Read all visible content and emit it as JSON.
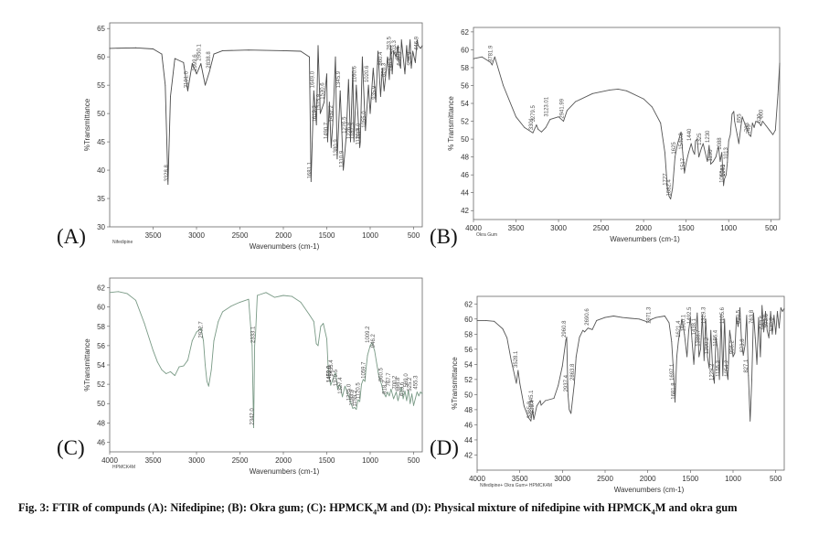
{
  "figure": {
    "caption_prefix": "Fig. 3: FTIR of compunds (A): Nifedipine; (B): Okra gum; (C): HPMCK",
    "caption_sub1": "4",
    "caption_mid": "M and (D): Physical mixture of nifedipine with HPMCK",
    "caption_sub2": "4",
    "caption_suffix": "M and okra gum"
  },
  "chart_data": [
    {
      "panel": "(A)",
      "type": "line",
      "sample_name": "Nifedipine",
      "xlabel": "Wavenumbers (cm-1)",
      "ylabel": "%Transmittance",
      "xlim": [
        4000,
        400
      ],
      "ylim": [
        30,
        66
      ],
      "xticks": [
        3500,
        3000,
        2500,
        2000,
        1500,
        1000,
        500
      ],
      "yticks": [
        30,
        35,
        40,
        45,
        50,
        55,
        60,
        65
      ],
      "line_color": "#4a4a4a",
      "grid": false,
      "x": [
        4000,
        3700,
        3500,
        3400,
        3360,
        3328,
        3300,
        3250,
        3150,
        3101,
        3050,
        2999,
        2950,
        2900,
        2850,
        2800,
        2700,
        2400,
        2000,
        1800,
        1700,
        1681,
        1650,
        1619,
        1600,
        1575,
        1530,
        1500,
        1490,
        1470,
        1450,
        1432,
        1400,
        1380,
        1345,
        1310,
        1276,
        1250,
        1226,
        1200,
        1187,
        1160,
        1120,
        1114,
        1090,
        1055,
        1020,
        1000,
        965,
        935,
        910,
        880,
        860,
        840,
        826,
        800,
        780,
        763,
        746,
        730,
        703,
        680,
        665,
        650,
        640,
        620,
        600,
        580,
        565,
        540,
        526,
        510,
        480,
        460,
        446,
        420,
        400
      ],
      "y": [
        61.5,
        61.6,
        61.4,
        60.5,
        55,
        37.5,
        53,
        59.7,
        59,
        54,
        58.8,
        57,
        58.8,
        55,
        57.5,
        60.5,
        61.1,
        61.2,
        61.1,
        61,
        60,
        38,
        54,
        48,
        62,
        50,
        52,
        57,
        45,
        52,
        44,
        48,
        60,
        42,
        54,
        40,
        46,
        56,
        45,
        58,
        45,
        55,
        44,
        45,
        60,
        47,
        55,
        50,
        58,
        52,
        61,
        53,
        58,
        54,
        56,
        60,
        56,
        62,
        57,
        61,
        60,
        62,
        59,
        58,
        63,
        60,
        57,
        62,
        59,
        63,
        58,
        61,
        59,
        63,
        62,
        61.5,
        62
      ],
      "annotations": [
        "3328.8",
        "3101.0",
        "2999.6",
        "2950.1",
        "2838.8",
        "1681.1",
        "1649.0",
        "1619.2",
        "1575.8",
        "1530.6",
        "1490.7",
        "1432.2",
        "1380.9",
        "1345.9",
        "1310.9",
        "1276.5",
        "1226.8",
        "1187.3",
        "1160.6",
        "1120.5",
        "1114.0",
        "1055.0",
        "1020.6",
        "935.9",
        "860.4",
        "826.3",
        "763.5",
        "746.5",
        "703.3",
        "665.6",
        "646.3",
        "526.9",
        "446.9"
      ]
    },
    {
      "panel": "(B)",
      "type": "line",
      "sample_name": "Okra Gum",
      "xlabel": "Wavenumbers (cm-1)",
      "ylabel": "% Transmittance",
      "xlim": [
        4000,
        400
      ],
      "ylim": [
        41,
        62.5
      ],
      "xticks": [
        4000,
        3500,
        3000,
        2500,
        2000,
        1500,
        1000,
        500
      ],
      "yticks": [
        42,
        44,
        46,
        48,
        50,
        52,
        54,
        56,
        58,
        60,
        62
      ],
      "line_color": "#555555",
      "grid": false,
      "x": [
        4000,
        3900,
        3800,
        3781,
        3750,
        3650,
        3500,
        3400,
        3301,
        3260,
        3240,
        3200,
        3150,
        3100,
        3000,
        2941,
        2900,
        2800,
        2600,
        2400,
        2300,
        2200,
        2000,
        1900,
        1800,
        1750,
        1720,
        1700,
        1682,
        1660,
        1630,
        1600,
        1560,
        1540,
        1520,
        1500,
        1470,
        1440,
        1420,
        1400,
        1390,
        1370,
        1350,
        1320,
        1300,
        1280,
        1250,
        1230,
        1210,
        1180,
        1150,
        1120,
        1100,
        1080,
        1060,
        1050,
        1030,
        1015,
        1000,
        980,
        960,
        940,
        930,
        900,
        880,
        855,
        840,
        820,
        780,
        760,
        740,
        720,
        700,
        680,
        640,
        620,
        600,
        560,
        520,
        480,
        450,
        420,
        400
      ],
      "y": [
        59,
        59.2,
        58.6,
        58.3,
        59.2,
        56,
        52.5,
        51.3,
        50.7,
        51.6,
        51.1,
        50.8,
        51.3,
        52.2,
        52.5,
        52,
        53.2,
        54.2,
        55.1,
        55.5,
        55.6,
        55.4,
        54.5,
        53.6,
        51.8,
        48.5,
        44.5,
        43.6,
        43.3,
        44.5,
        48,
        49.5,
        50.8,
        48.5,
        46.2,
        47.3,
        48.5,
        49.5,
        48.7,
        48.3,
        49.8,
        50,
        48,
        49,
        49.5,
        48.7,
        47.5,
        49.3,
        47.2,
        47.5,
        48,
        49.2,
        47.5,
        48.5,
        44.8,
        45.5,
        46,
        47.4,
        49.8,
        50.5,
        52.8,
        53.1,
        52,
        50.5,
        49.5,
        51.5,
        52.5,
        52,
        51,
        50.5,
        50.3,
        51.8,
        51.3,
        52,
        51.8,
        51.5,
        52,
        51.5,
        51,
        50.5,
        51,
        55,
        58.5
      ],
      "annotations": [
        "3781.9",
        "3301",
        "3279.5",
        "3123.01",
        "2941.99",
        "1727",
        "1682.4",
        "1625",
        "1540.8",
        "1517",
        "1440",
        "1325",
        "1230",
        "1196",
        "1088",
        "1060",
        "1051",
        "1043",
        "1013",
        "855",
        "763",
        "743",
        "620",
        "600"
      ]
    },
    {
      "panel": "(C)",
      "type": "line",
      "sample_name": "HPMCK4M",
      "xlabel": "Wavenumbers (cm-1)",
      "ylabel": "%Transmittance",
      "xlim": [
        4000,
        400
      ],
      "ylim": [
        45,
        63
      ],
      "xticks": [
        4000,
        3500,
        3000,
        2500,
        2000,
        1500,
        1000,
        500
      ],
      "yticks": [
        46,
        48,
        50,
        52,
        54,
        56,
        58,
        60,
        62
      ],
      "line_color": "#7a9a86",
      "grid": false,
      "x": [
        4000,
        3900,
        3800,
        3700,
        3600,
        3500,
        3450,
        3400,
        3350,
        3300,
        3250,
        3200,
        3150,
        3100,
        3050,
        3000,
        2950,
        2920,
        2900,
        2880,
        2860,
        2830,
        2800,
        2750,
        2700,
        2600,
        2500,
        2400,
        2360,
        2342,
        2330,
        2320,
        2300,
        2200,
        2100,
        2000,
        1900,
        1800,
        1700,
        1650,
        1620,
        1600,
        1570,
        1540,
        1500,
        1480,
        1455,
        1430,
        1400,
        1375,
        1350,
        1320,
        1290,
        1250,
        1220,
        1200,
        1180,
        1160,
        1140,
        1120,
        1100,
        1080,
        1060,
        1050,
        1030,
        1000,
        980,
        950,
        900,
        870,
        850,
        820,
        800,
        780,
        760,
        730,
        700,
        680,
        660,
        640,
        620,
        600,
        580,
        560,
        540,
        520,
        500,
        480,
        460,
        440,
        420,
        400
      ],
      "y": [
        61.5,
        61.6,
        61.4,
        60.7,
        58.3,
        55.5,
        54.3,
        53.5,
        53.1,
        53.3,
        52.9,
        53.8,
        53.9,
        54.5,
        56.5,
        57.4,
        57.8,
        56.5,
        54,
        52.3,
        51.8,
        53.5,
        56.5,
        58.5,
        59.5,
        60.1,
        60.5,
        60.8,
        56,
        47.5,
        56,
        57.2,
        61.2,
        61.5,
        61,
        61.2,
        61.1,
        60.5,
        59.2,
        58.5,
        56.2,
        56,
        58,
        58.3,
        56.7,
        53,
        51.9,
        52.5,
        53.2,
        51.5,
        52,
        50.7,
        51.8,
        50.8,
        50,
        49.5,
        49.6,
        49.4,
        50.4,
        50.2,
        52,
        52.5,
        52.3,
        53.5,
        55,
        56,
        56.3,
        55.5,
        52.8,
        52,
        51.2,
        50.7,
        51.2,
        50.8,
        51.5,
        50.5,
        51.2,
        50.3,
        51,
        51.7,
        50.5,
        51.3,
        50.3,
        51.4,
        50,
        51,
        49.8,
        50.5,
        51.2,
        50.8,
        51.2,
        51
      ],
      "annotations": [
        "2932.7",
        "2342.0",
        "2333.1",
        "1459.8",
        "1452.6",
        "1433.4",
        "1379.5",
        "1327.4",
        "1225.0",
        "1193.9",
        "1155.2",
        "1120.5",
        "1059.7",
        "1009.2",
        "946.2",
        "860.5",
        "818.2",
        "767.7",
        "700.2",
        "664.8",
        "613.6",
        "569.0",
        "525.2",
        "455.3"
      ]
    },
    {
      "panel": "(D)",
      "type": "line",
      "sample_name": "Nifedipine+ Okra Gum+ HPMCK4M",
      "xlabel": "Wavenumbers (cm-1)",
      "ylabel": "%Transmittance",
      "xlim": [
        4000,
        400
      ],
      "ylim": [
        40,
        63
      ],
      "xticks": [
        4000,
        3500,
        3000,
        2500,
        2000,
        1500,
        1000,
        500
      ],
      "yticks": [
        42,
        44,
        46,
        48,
        50,
        52,
        54,
        56,
        58,
        60,
        62
      ],
      "line_color": "#555555",
      "grid": false,
      "x": [
        4000,
        3900,
        3800,
        3700,
        3650,
        3600,
        3560,
        3540,
        3520,
        3500,
        3450,
        3400,
        3370,
        3350,
        3336,
        3300,
        3260,
        3250,
        3200,
        3100,
        3050,
        3000,
        2960,
        2950,
        2935,
        2920,
        2900,
        2860,
        2840,
        2800,
        2760,
        2740,
        2700,
        2650,
        2600,
        2500,
        2400,
        2300,
        2200,
        2100,
        2000,
        1950,
        1900,
        1800,
        1750,
        1720,
        1690,
        1680,
        1660,
        1640,
        1600,
        1570,
        1540,
        1520,
        1500,
        1480,
        1460,
        1440,
        1420,
        1400,
        1380,
        1360,
        1340,
        1320,
        1300,
        1280,
        1260,
        1240,
        1220,
        1200,
        1180,
        1160,
        1140,
        1120,
        1100,
        1080,
        1060,
        1040,
        1020,
        1000,
        980,
        960,
        940,
        920,
        900,
        880,
        860,
        840,
        820,
        800,
        780,
        760,
        740,
        720,
        700,
        680,
        660,
        640,
        620,
        600,
        580,
        560,
        540,
        520,
        500,
        480,
        460,
        440,
        420,
        400
      ],
      "y": [
        59.8,
        59.8,
        59.7,
        58.7,
        57.5,
        54.5,
        52.5,
        51.5,
        53.2,
        51.5,
        48.5,
        47,
        46.5,
        48,
        46.7,
        48.5,
        49.2,
        48.6,
        49.2,
        49.5,
        51.2,
        53.8,
        57.2,
        57.6,
        50,
        48,
        47.5,
        51.5,
        55,
        57.6,
        58.5,
        58.3,
        58.8,
        58.6,
        59.8,
        60.2,
        60.4,
        60.2,
        60.1,
        60,
        59.6,
        60,
        60.2,
        60.4,
        59.5,
        57,
        51.5,
        49,
        55,
        57.2,
        60,
        58,
        55,
        58.5,
        60.2,
        57,
        54,
        57.5,
        60.8,
        55,
        56,
        60.5,
        54.5,
        60,
        55,
        53.5,
        58.5,
        53.5,
        51.5,
        57.5,
        56,
        52,
        60.6,
        52.5,
        60,
        53.5,
        52,
        58.5,
        57,
        55,
        55.5,
        60.2,
        59,
        61.5,
        57,
        55.2,
        56.5,
        60.5,
        52.5,
        46.5,
        52,
        60.8,
        57.5,
        54,
        60.2,
        55,
        61.8,
        58.3,
        61,
        58.5,
        57.5,
        61,
        58,
        60.5,
        58,
        61,
        58.8,
        61.5,
        61,
        61.4
      ],
      "annotations": [
        "3528.1",
        "3336.4",
        "3365.8",
        "3345.1",
        "2960.8",
        "2937.4",
        "2863.8",
        "2690.6",
        "1971.3",
        "1697.1",
        "1681.8",
        "1621.4",
        "1560.1",
        "1492.5",
        "1438.1",
        "1388.7",
        "1329.3",
        "1290.2",
        "1229.2",
        "1186.4",
        "1155.3",
        "1105.6",
        "1054.2",
        "996.2",
        "920.5",
        "873.8",
        "827.1",
        "763.8",
        "643.6",
        "593.6",
        "530.6"
      ]
    }
  ]
}
